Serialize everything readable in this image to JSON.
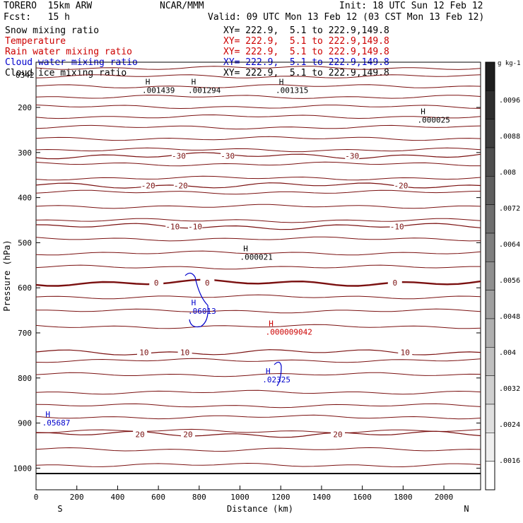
{
  "header": {
    "model": "TORERO  15km ARW",
    "center": "NCAR/MMM",
    "init": "Init: 18 UTC Sun 12 Feb 12",
    "fcst": "Fcst:   15 h",
    "valid": "Valid: 09 UTC Mon 13 Feb 12 (03 CST Mon 13 Feb 12)"
  },
  "legend_rows": [
    {
      "label": "Snow mixing ratio",
      "xy": "XY= 222.9,  5.1 to 222.9,149.8",
      "color": "#000000"
    },
    {
      "label": "Temperature",
      "xy": "XY= 222.9,  5.1 to 222.9,149.8",
      "color": "#cc0000"
    },
    {
      "label": "Rain water mixing ratio",
      "xy": "XY= 222.9,  5.1 to 222.9,149.8",
      "color": "#cc0000"
    },
    {
      "label": "Cloud water mixing ratio",
      "xy": "XY= 222.9,  5.1 to 222.9,149.8",
      "color": "#0000cc"
    },
    {
      "label": "Cloud ice mixing ratio",
      "xy": "XY= 222.9,  5.1 to 222.9,149.8",
      "color": "#000000"
    }
  ],
  "chart_data": {
    "type": "cross-section",
    "xlabel": "Distance (km)",
    "ylabel": "Pressure (hPa)",
    "xlim": [
      0,
      2180
    ],
    "ylim_hpa": [
      1050,
      100
    ],
    "xticks": [
      0,
      200,
      400,
      600,
      800,
      1000,
      1200,
      1400,
      1600,
      1800,
      2000
    ],
    "yticks": [
      200,
      300,
      400,
      500,
      600,
      700,
      800,
      900,
      1000
    ],
    "x_end_labels": {
      "left": "S",
      "right": "N"
    },
    "colorbar": {
      "unit": "g kg-1",
      "ticks": [
        ".0096",
        ".0088",
        ".008",
        ".0072",
        ".0064",
        ".0056",
        ".0048",
        ".004",
        ".0032",
        ".0024",
        ".0016"
      ]
    },
    "temperature_contours": [
      {
        "value": -30,
        "label": "-30",
        "pressure": 307,
        "label_x": [
          700,
          940,
          1550
        ]
      },
      {
        "value": -20,
        "label": "-20",
        "pressure": 373,
        "label_x": [
          550,
          710,
          1790
        ]
      },
      {
        "value": -10,
        "label": "-10",
        "pressure": 464,
        "label_x": [
          670,
          780,
          1770
        ]
      },
      {
        "value": 0,
        "label": "0",
        "pressure": 589,
        "label_x": [
          590,
          840,
          1760
        ]
      },
      {
        "value": 10,
        "label": "10",
        "pressure": 743,
        "label_x": [
          530,
          730,
          1810
        ]
      },
      {
        "value": 20,
        "label": "20",
        "pressure": 925,
        "label_x": [
          510,
          745,
          1480
        ]
      }
    ],
    "extrema": [
      {
        "label": ".001439",
        "x": 520,
        "pressure": 168,
        "color": "#000000"
      },
      {
        "label": ".001294",
        "x": 745,
        "pressure": 168,
        "color": "#000000"
      },
      {
        "label": ".001315",
        "x": 1175,
        "pressure": 168,
        "color": "#000000"
      },
      {
        "label": ".000025",
        "x": 1870,
        "pressure": 234,
        "color": "#000000"
      },
      {
        "label": ".000021",
        "x": 1000,
        "pressure": 538,
        "color": "#000000"
      },
      {
        "label": ".06013",
        "x": 745,
        "pressure": 658,
        "color": "#0000cc"
      },
      {
        "label": ".000009042",
        "x": 1125,
        "pressure": 704,
        "color": "#cc0000"
      },
      {
        "label": ".02325",
        "x": 1110,
        "pressure": 810,
        "color": "#0000cc"
      },
      {
        "label": ".05687",
        "x": 30,
        "pressure": 905,
        "color": "#0000cc"
      }
    ],
    "upper_left_label": "0342"
  }
}
